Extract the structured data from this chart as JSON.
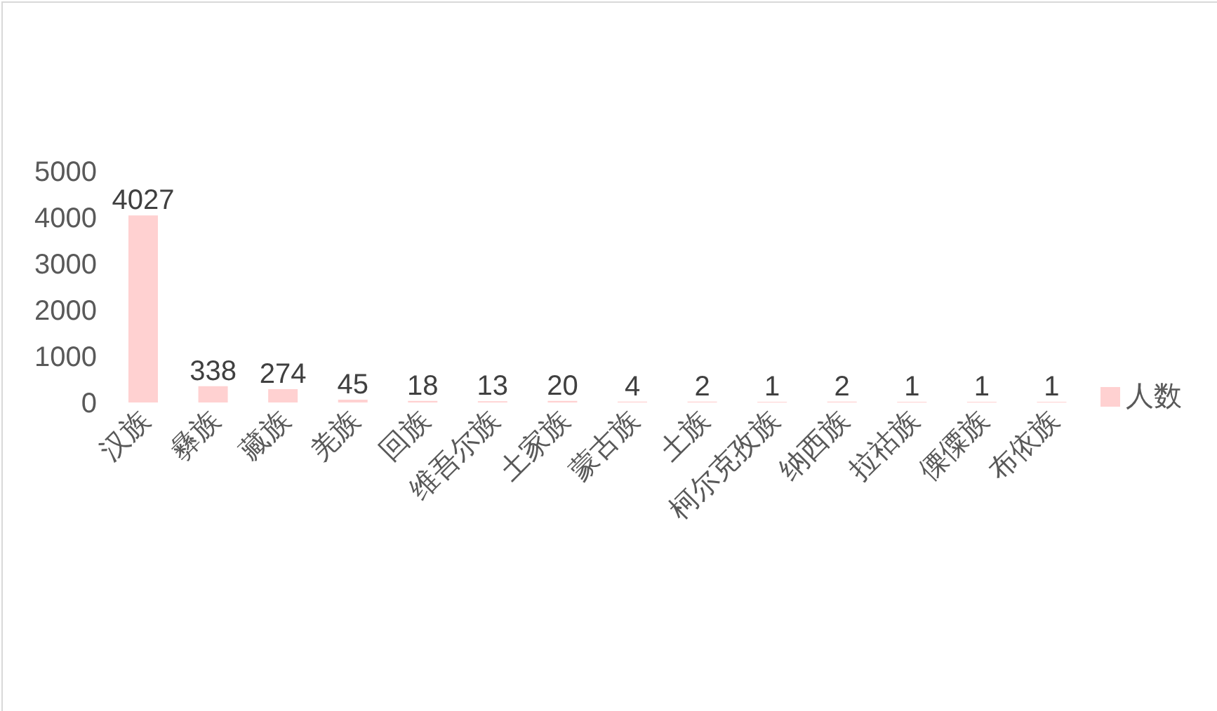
{
  "chart_data": {
    "type": "bar",
    "categories": [
      "汉族",
      "彝族",
      "藏族",
      "羌族",
      "回族",
      "维吾尔族",
      "土家族",
      "蒙古族",
      "土族",
      "柯尔克孜族",
      "纳西族",
      "拉祜族",
      "傈僳族",
      "布依族"
    ],
    "series": [
      {
        "name": "人数",
        "color": "#ffd1d1",
        "values": [
          4027,
          338,
          274,
          45,
          18,
          13,
          20,
          4,
          2,
          1,
          2,
          1,
          1,
          1
        ]
      }
    ],
    "ylim": [
      0,
      5000
    ],
    "yticks": [
      0,
      1000,
      2000,
      3000,
      4000,
      5000
    ],
    "grid": false,
    "legend": "right",
    "data_labels": true
  }
}
